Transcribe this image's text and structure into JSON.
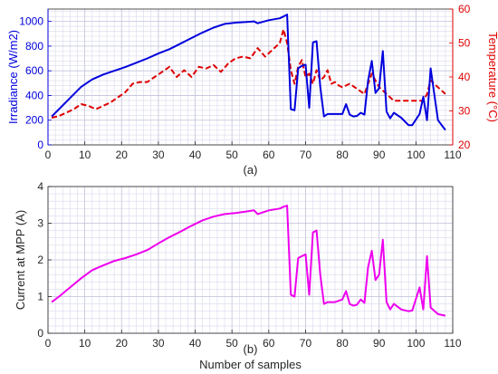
{
  "colors": {
    "irradiance": "#0000dd",
    "temperature": "#dd0000",
    "current": "#ee00ee",
    "axis": "#262626",
    "grid": "#d9d9ee"
  },
  "chart_data": [
    {
      "type": "line",
      "title": "",
      "caption": "(a)",
      "xlabel": "",
      "xlim": [
        0,
        110
      ],
      "xticks": [
        0,
        10,
        20,
        30,
        40,
        50,
        60,
        70,
        80,
        90,
        100,
        110
      ],
      "xtick_labels": [
        "0",
        "10",
        "20",
        "30",
        "40",
        "50",
        "60",
        "70",
        "80",
        "90",
        "100",
        "110"
      ],
      "grid": true,
      "series": [
        {
          "name": "Irradiance",
          "axis": "left",
          "style": "solid",
          "ylabel": "Irradiance (W/m2)",
          "ylim": [
            0,
            1100
          ],
          "yticks": [
            0,
            200,
            400,
            600,
            800,
            1000
          ],
          "ytick_labels": [
            "0",
            "200",
            "400",
            "600",
            "800",
            "1000"
          ],
          "x": [
            1,
            3,
            6,
            9,
            12,
            15,
            18,
            21,
            24,
            27,
            30,
            33,
            36,
            39,
            42,
            45,
            48,
            51,
            54,
            56,
            57,
            60,
            63,
            64,
            65,
            66,
            67,
            68,
            69,
            70,
            71,
            72,
            73,
            74,
            75,
            76,
            78,
            80,
            81,
            82,
            83,
            84,
            85,
            86,
            87,
            88,
            89,
            90,
            91,
            92,
            93,
            94,
            96,
            98,
            99,
            101,
            102,
            103,
            104,
            106,
            108
          ],
          "y": [
            230,
            290,
            380,
            470,
            530,
            570,
            600,
            630,
            665,
            700,
            740,
            775,
            820,
            865,
            910,
            950,
            980,
            990,
            995,
            1000,
            985,
            1010,
            1025,
            1040,
            1055,
            290,
            280,
            620,
            640,
            650,
            300,
            830,
            840,
            470,
            230,
            250,
            250,
            250,
            330,
            245,
            230,
            235,
            260,
            245,
            520,
            680,
            420,
            460,
            760,
            270,
            215,
            260,
            220,
            160,
            160,
            250,
            390,
            200,
            620,
            200,
            120
          ]
        },
        {
          "name": "Temperature",
          "axis": "right",
          "style": "dashed",
          "ylabel": "Temperature (°C)",
          "ylim": [
            20,
            60
          ],
          "yticks": [
            20,
            30,
            40,
            50,
            60
          ],
          "ytick_labels": [
            "20",
            "30",
            "40",
            "50",
            "60"
          ],
          "x": [
            1,
            3,
            5,
            7,
            9,
            11,
            13,
            15,
            17,
            19,
            21,
            23,
            25,
            27,
            29,
            31,
            33,
            35,
            37,
            39,
            41,
            43,
            45,
            47,
            49,
            51,
            53,
            55,
            57,
            59,
            61,
            63,
            64,
            65,
            66,
            67,
            68,
            69,
            70,
            71,
            72,
            73,
            74,
            75,
            76,
            77,
            78,
            79,
            80,
            82,
            84,
            86,
            88,
            90,
            92,
            94,
            96,
            98,
            100,
            102,
            103,
            104,
            106,
            108
          ],
          "y": [
            28,
            28.5,
            29.5,
            30.5,
            32,
            31.5,
            30.5,
            31.5,
            32.5,
            34,
            35.5,
            38,
            38.5,
            38.5,
            40,
            41.5,
            43,
            40,
            42,
            40,
            43,
            42.5,
            43.5,
            41.5,
            44,
            45.5,
            46,
            45.5,
            48.5,
            46,
            48,
            50,
            54,
            50,
            42,
            38,
            43,
            45,
            40,
            41,
            38,
            42,
            39,
            40,
            42,
            38,
            38.5,
            37.5,
            37,
            38,
            36.5,
            35,
            41,
            37,
            35,
            33,
            33,
            33,
            33,
            33,
            35,
            39,
            37,
            35
          ]
        }
      ]
    },
    {
      "type": "line",
      "title": "",
      "caption": "(b)",
      "xlabel": "Number of samples",
      "ylabel": "Current at MPP (A)",
      "xlim": [
        0,
        110
      ],
      "ylim": [
        0,
        4
      ],
      "xticks": [
        0,
        10,
        20,
        30,
        40,
        50,
        60,
        70,
        80,
        90,
        100,
        110
      ],
      "xtick_labels": [
        "0",
        "10",
        "20",
        "30",
        "40",
        "50",
        "60",
        "70",
        "80",
        "90",
        "100",
        "110"
      ],
      "yticks": [
        0,
        1,
        2,
        3,
        4
      ],
      "ytick_labels": [
        "0",
        "1",
        "2",
        "3",
        "4"
      ],
      "grid": true,
      "series": [
        {
          "x": [
            1,
            3,
            6,
            9,
            12,
            15,
            18,
            21,
            24,
            27,
            30,
            33,
            36,
            39,
            42,
            45,
            48,
            51,
            54,
            56,
            57,
            60,
            63,
            64,
            65,
            66,
            67,
            68,
            69,
            70,
            71,
            72,
            73,
            74,
            75,
            76,
            78,
            80,
            81,
            82,
            83,
            84,
            85,
            86,
            87,
            88,
            89,
            90,
            91,
            92,
            93,
            94,
            96,
            98,
            99,
            101,
            102,
            103,
            104,
            106,
            108
          ],
          "y": [
            0.85,
            1.0,
            1.25,
            1.5,
            1.72,
            1.85,
            1.97,
            2.05,
            2.15,
            2.27,
            2.45,
            2.62,
            2.77,
            2.93,
            3.08,
            3.18,
            3.25,
            3.28,
            3.32,
            3.35,
            3.25,
            3.35,
            3.4,
            3.45,
            3.48,
            1.05,
            1.0,
            2.05,
            2.1,
            2.15,
            1.05,
            2.75,
            2.8,
            1.6,
            0.8,
            0.85,
            0.85,
            0.92,
            1.15,
            0.8,
            0.75,
            0.78,
            0.92,
            0.83,
            1.8,
            2.25,
            1.45,
            1.6,
            2.55,
            0.85,
            0.65,
            0.8,
            0.65,
            0.6,
            0.62,
            1.25,
            0.65,
            2.1,
            0.7,
            0.52,
            0.48
          ]
        }
      ]
    }
  ]
}
